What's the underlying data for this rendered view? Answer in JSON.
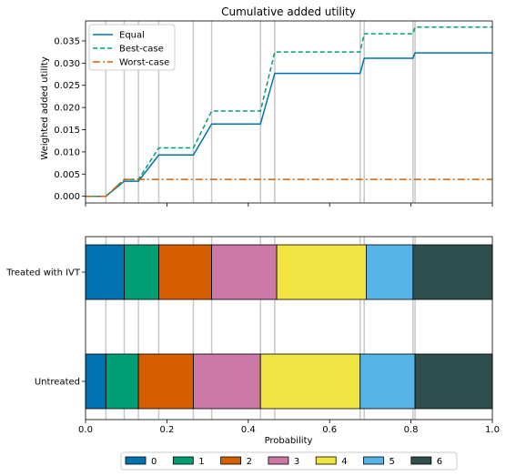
{
  "chart_data": [
    {
      "type": "line",
      "title": "Cumulative added utility",
      "xlabel": "",
      "ylabel": "Weighted added utility",
      "xlim": [
        0,
        1
      ],
      "ylim": [
        -0.0015,
        0.0395
      ],
      "x_ticks": [
        0,
        0.2,
        0.4,
        0.6,
        0.8,
        1.0
      ],
      "y_ticks": [
        0,
        0.005,
        0.01,
        0.015,
        0.02,
        0.025,
        0.03,
        0.035
      ],
      "y_tick_labels": [
        "0.000",
        "0.005",
        "0.010",
        "0.015",
        "0.020",
        "0.025",
        "0.030",
        "0.035"
      ],
      "legend_position": "top-left",
      "grid": "vertical lines at category boundaries",
      "boundaries": [
        0.05,
        0.095,
        0.13,
        0.18,
        0.265,
        0.31,
        0.43,
        0.465,
        0.675,
        0.685,
        0.805,
        0.81
      ],
      "series": [
        {
          "name": "Equal",
          "color": "#0072b2",
          "style": "solid",
          "x": [
            0,
            0.05,
            0.095,
            0.13,
            0.18,
            0.265,
            0.31,
            0.43,
            0.465,
            0.675,
            0.685,
            0.805,
            0.81,
            1.0
          ],
          "y": [
            0,
            0,
            0.0034,
            0.0034,
            0.0093,
            0.0093,
            0.0163,
            0.0163,
            0.0277,
            0.0277,
            0.0311,
            0.0311,
            0.0323,
            0.0323
          ]
        },
        {
          "name": "Best-case",
          "color": "#009e73",
          "style": "dashed",
          "x": [
            0,
            0.05,
            0.095,
            0.13,
            0.18,
            0.265,
            0.31,
            0.43,
            0.465,
            0.675,
            0.685,
            0.805,
            0.81,
            1.0
          ],
          "y": [
            0,
            0,
            0.0038,
            0.0038,
            0.0109,
            0.0109,
            0.0192,
            0.0192,
            0.0325,
            0.0325,
            0.0366,
            0.0366,
            0.0381,
            0.0381
          ]
        },
        {
          "name": "Worst-case",
          "color": "#d55e00",
          "style": "dashdot",
          "x": [
            0,
            0.05,
            0.095,
            0.13,
            1.0
          ],
          "y": [
            0,
            0,
            0.0038,
            0.0038,
            0.0038
          ]
        }
      ]
    },
    {
      "type": "bar",
      "orientation": "horizontal-stacked",
      "xlabel": "Probability",
      "xlim": [
        0,
        1
      ],
      "x_ticks": [
        0,
        0.2,
        0.4,
        0.6,
        0.8,
        1.0
      ],
      "x_tick_labels": [
        "0.0",
        "0.2",
        "0.4",
        "0.6",
        "0.8",
        "1.0"
      ],
      "categories": [
        "Treated with IVT",
        "Untreated"
      ],
      "legend_position": "bottom-center",
      "series": [
        {
          "name": "0",
          "color": "#0072b2",
          "values": [
            0.095,
            0.05
          ]
        },
        {
          "name": "1",
          "color": "#009e73",
          "values": [
            0.085,
            0.08
          ]
        },
        {
          "name": "2",
          "color": "#d55e00",
          "values": [
            0.13,
            0.135
          ]
        },
        {
          "name": "3",
          "color": "#cc79a7",
          "values": [
            0.16,
            0.165
          ]
        },
        {
          "name": "4",
          "color": "#f0e442",
          "values": [
            0.22,
            0.245
          ]
        },
        {
          "name": "5",
          "color": "#56b4e9",
          "values": [
            0.115,
            0.135
          ]
        },
        {
          "name": "6",
          "color": "#2f4f4f",
          "values": [
            0.195,
            0.19
          ]
        }
      ]
    }
  ]
}
